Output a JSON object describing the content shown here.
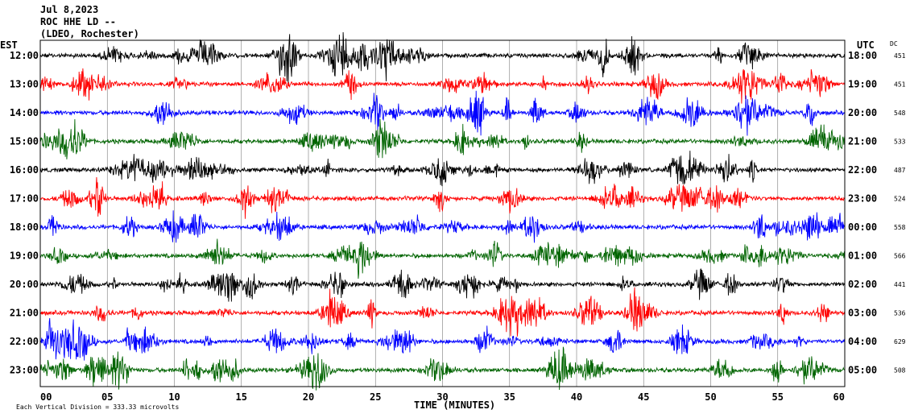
{
  "header": {
    "date": "Jul 8,2023",
    "station": "ROC HHE LD --",
    "network": "(LDEO, Rochester)"
  },
  "chart_data": {
    "type": "line",
    "title": "",
    "left_axis_label": "EST",
    "right_axis_label": "UTC",
    "dc_label": "DC",
    "xlabel": "TIME (MINUTES)",
    "xlim": [
      0,
      60
    ],
    "x_ticks": [
      "00",
      "05",
      "10",
      "15",
      "20",
      "25",
      "30",
      "35",
      "40",
      "45",
      "50",
      "55",
      "60"
    ],
    "scale_note": "Each Vertical Division =  333.33 microvolts",
    "grid": true,
    "colors": {
      "black": "#000000",
      "red": "#ff0000",
      "blue": "#0000ff",
      "green": "#006400"
    },
    "traces": [
      {
        "est": "12:00",
        "utc": "18:00",
        "dc": "451",
        "color": "#000000"
      },
      {
        "est": "13:00",
        "utc": "19:00",
        "dc": "451",
        "color": "#ff0000"
      },
      {
        "est": "14:00",
        "utc": "20:00",
        "dc": "548",
        "color": "#0000ff"
      },
      {
        "est": "15:00",
        "utc": "21:00",
        "dc": "533",
        "color": "#006400"
      },
      {
        "est": "16:00",
        "utc": "22:00",
        "dc": "487",
        "color": "#000000"
      },
      {
        "est": "17:00",
        "utc": "23:00",
        "dc": "524",
        "color": "#ff0000"
      },
      {
        "est": "18:00",
        "utc": "00:00",
        "dc": "558",
        "color": "#0000ff"
      },
      {
        "est": "19:00",
        "utc": "01:00",
        "dc": "566",
        "color": "#006400"
      },
      {
        "est": "20:00",
        "utc": "02:00",
        "dc": "441",
        "color": "#000000"
      },
      {
        "est": "21:00",
        "utc": "03:00",
        "dc": "536",
        "color": "#ff0000"
      },
      {
        "est": "22:00",
        "utc": "04:00",
        "dc": "629",
        "color": "#0000ff"
      },
      {
        "est": "23:00",
        "utc": "05:00",
        "dc": "508",
        "color": "#006400"
      }
    ]
  }
}
